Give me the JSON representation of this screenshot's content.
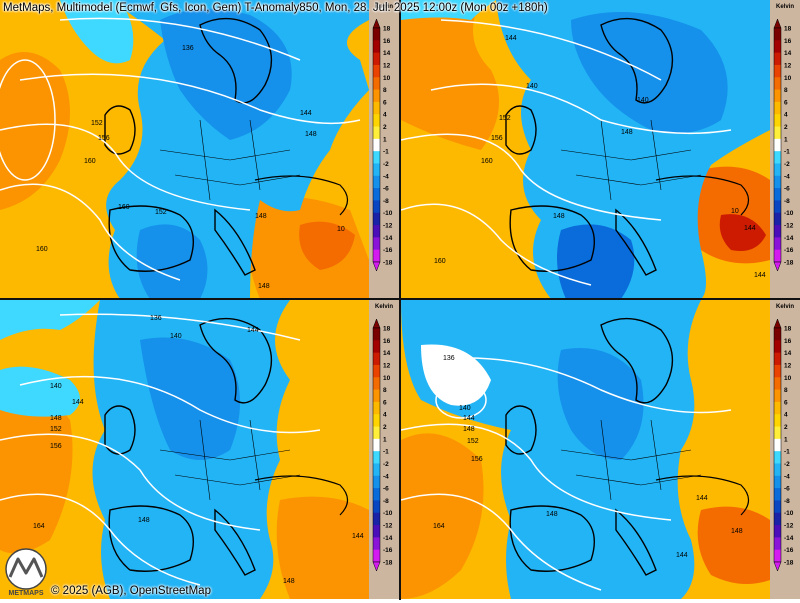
{
  "title": "MetMaps, Multimodel (Ecmwf, Gfs, Icon, Gem) T-Anomaly850, Mon, 28. Jul. 2025 12:00z (Mon 00z +180h)",
  "credit": "© 2025 (AGB), OpenStreetMap",
  "logo_text": "METMAPS",
  "legend": {
    "unit": "Kelvin",
    "ticks": [
      "18",
      "16",
      "14",
      "12",
      "10",
      "8",
      "6",
      "4",
      "2",
      "1",
      "-1",
      "-2",
      "-4",
      "-6",
      "-8",
      "-10",
      "-12",
      "-14",
      "-16",
      "-18"
    ],
    "colors": [
      "#7a0000",
      "#a30000",
      "#cc1b00",
      "#ea4200",
      "#f46b00",
      "#fb9400",
      "#fdb800",
      "#fed500",
      "#ffee3a",
      "#ffffff",
      "#ffffff",
      "#3fd8ff",
      "#22b4f5",
      "#1590eb",
      "#0a6bda",
      "#0a45c2",
      "#1a23a8",
      "#4a0fb8",
      "#8a14d8",
      "#d41cf0"
    ]
  },
  "panels": [
    {
      "model_position": "top-left",
      "contours": [
        {
          "label": "136"
        },
        {
          "label": "144"
        },
        {
          "label": "148"
        },
        {
          "label": "152"
        },
        {
          "label": "156"
        },
        {
          "label": "160"
        },
        {
          "label": "160"
        },
        {
          "label": "160"
        },
        {
          "label": "148"
        },
        {
          "label": "148"
        },
        {
          "label": "10"
        },
        {
          "label": "152"
        }
      ]
    },
    {
      "model_position": "top-right",
      "contours": [
        {
          "label": "144"
        },
        {
          "label": "140"
        },
        {
          "label": "140"
        },
        {
          "label": "148"
        },
        {
          "label": "152"
        },
        {
          "label": "156"
        },
        {
          "label": "160"
        },
        {
          "label": "160"
        },
        {
          "label": "148"
        },
        {
          "label": "144"
        },
        {
          "label": "10"
        },
        {
          "label": "144"
        }
      ]
    },
    {
      "model_position": "bottom-left",
      "contours": [
        {
          "label": "136"
        },
        {
          "label": "140"
        },
        {
          "label": "144"
        },
        {
          "label": "140"
        },
        {
          "label": "144"
        },
        {
          "label": "148"
        },
        {
          "label": "152"
        },
        {
          "label": "156"
        },
        {
          "label": "148"
        },
        {
          "label": "164"
        },
        {
          "label": "148"
        },
        {
          "label": "144"
        }
      ]
    },
    {
      "model_position": "bottom-right",
      "contours": [
        {
          "label": "136"
        },
        {
          "label": "140"
        },
        {
          "label": "144"
        },
        {
          "label": "148"
        },
        {
          "label": "152"
        },
        {
          "label": "156"
        },
        {
          "label": "164"
        },
        {
          "label": "148"
        },
        {
          "label": "144"
        },
        {
          "label": "144"
        },
        {
          "label": "148"
        }
      ]
    }
  ]
}
